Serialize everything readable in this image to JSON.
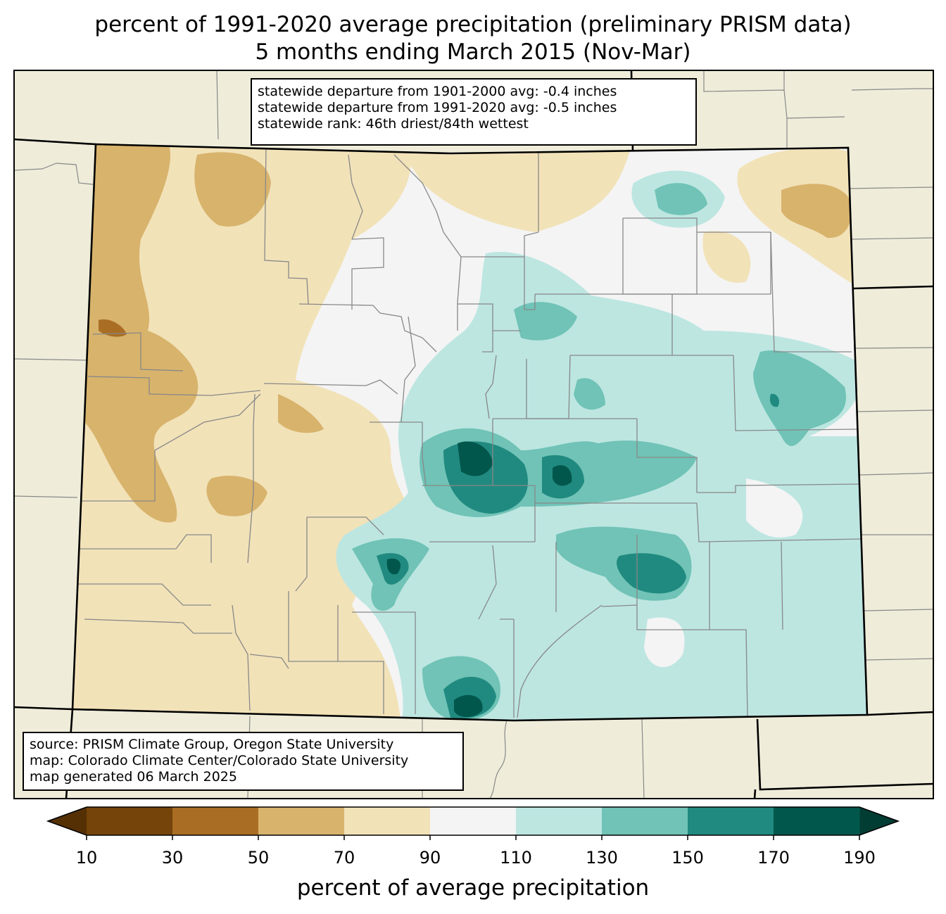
{
  "title": {
    "line1": "percent of 1991-2020 average precipitation (preliminary PRISM data)",
    "line2": "5 months ending March 2015 (Nov-Mar)"
  },
  "stats_box": {
    "line1": "statewide departure from 1901-2000 avg: -0.4 inches",
    "line2": "statewide departure from 1991-2020 avg: -0.5 inches",
    "line3": "statewide rank: 46th driest/84th wettest"
  },
  "source_box": {
    "line1": "source: PRISM Climate Group, Oregon State University",
    "line2": "map: Colorado Climate Center/Colorado State University",
    "line3": "map generated 06 March 2025"
  },
  "colorbar": {
    "label": "percent of average precipitation",
    "ticks": [
      "10",
      "30",
      "50",
      "70",
      "90",
      "110",
      "130",
      "150",
      "170",
      "190"
    ],
    "colors": [
      "#74440a",
      "#a96e24",
      "#d8b36c",
      "#f2e2b8",
      "#f4f4f4",
      "#bde6e1",
      "#70c3b6",
      "#218a80",
      "#02574c"
    ],
    "under_color": "#553005",
    "over_color": "#023d34"
  },
  "map_colors": {
    "land_outside": "#efedda",
    "county_lines": "#888888",
    "state_lines": "#000000"
  }
}
